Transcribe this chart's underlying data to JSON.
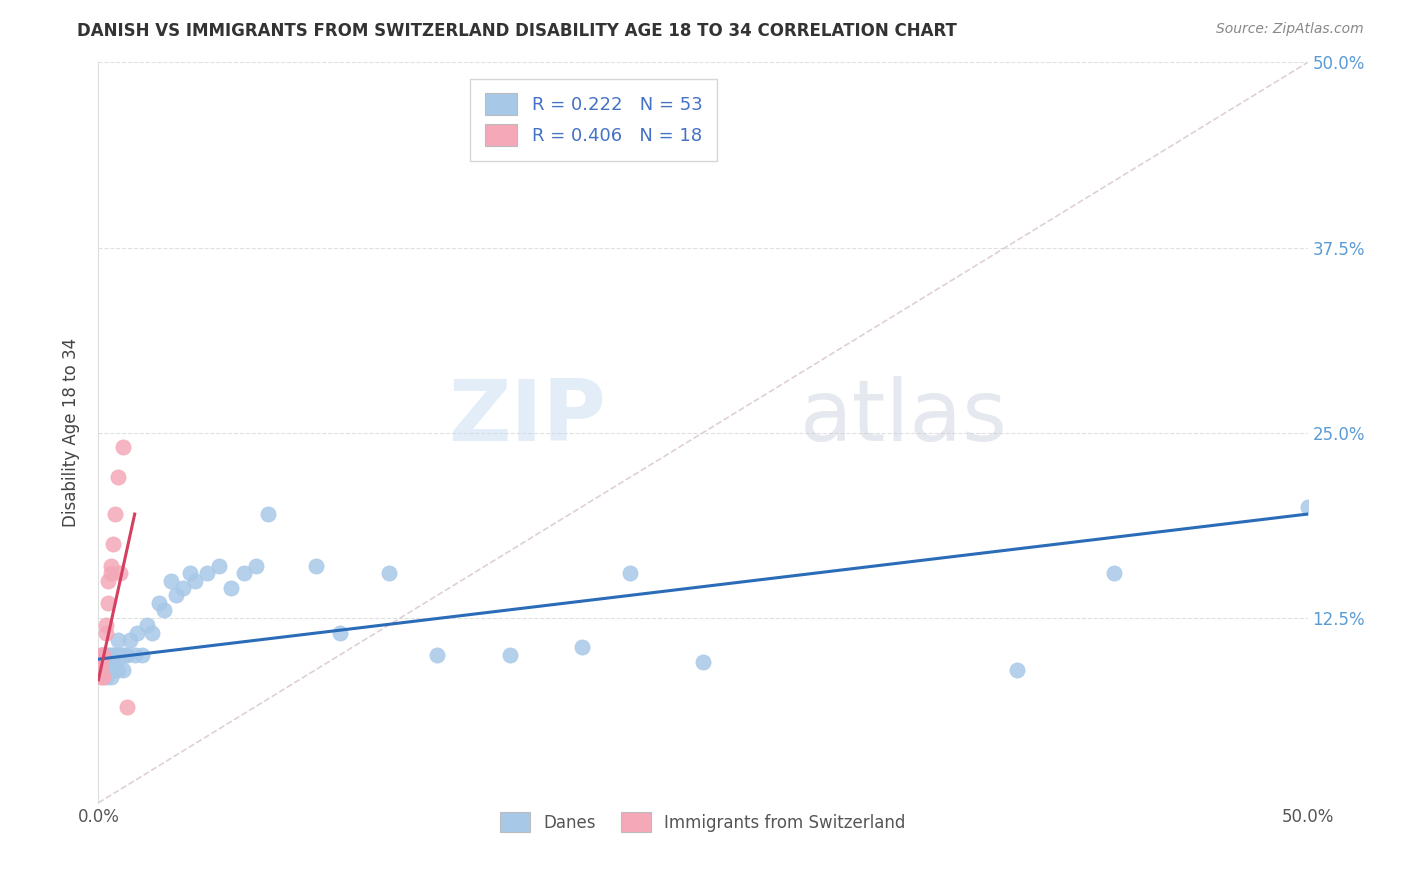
{
  "title": "DANISH VS IMMIGRANTS FROM SWITZERLAND DISABILITY AGE 18 TO 34 CORRELATION CHART",
  "source_text": "Source: ZipAtlas.com",
  "ylabel": "Disability Age 18 to 34",
  "xlim": [
    0.0,
    0.5
  ],
  "ylim": [
    0.0,
    0.5
  ],
  "xtick_vals": [
    0.0,
    0.125,
    0.25,
    0.375,
    0.5
  ],
  "xtick_labels": [
    "0.0%",
    "",
    "",
    "",
    "50.0%"
  ],
  "ytick_vals": [
    0.0,
    0.125,
    0.25,
    0.375,
    0.5
  ],
  "ytick_right_labels": [
    "",
    "12.5%",
    "25.0%",
    "37.5%",
    "50.0%"
  ],
  "watermark_zip": "ZIP",
  "watermark_atlas": "atlas",
  "danes_color": "#A8C8E8",
  "immigrants_color": "#F4A8B8",
  "danes_line_color": "#2B6CB8",
  "immigrants_line_color": "#D44060",
  "danes_R": 0.222,
  "danes_N": 53,
  "immigrants_R": 0.406,
  "immigrants_N": 18,
  "background_color": "#FFFFFF",
  "grid_color": "#DDDDDD",
  "diag_color": "#DDCCCC",
  "danes_scatter_x": [
    0.001,
    0.001,
    0.002,
    0.002,
    0.003,
    0.003,
    0.003,
    0.004,
    0.004,
    0.005,
    0.005,
    0.005,
    0.006,
    0.006,
    0.007,
    0.007,
    0.008,
    0.008,
    0.009,
    0.01,
    0.01,
    0.011,
    0.012,
    0.013,
    0.015,
    0.016,
    0.018,
    0.02,
    0.022,
    0.025,
    0.027,
    0.03,
    0.032,
    0.035,
    0.038,
    0.04,
    0.045,
    0.05,
    0.055,
    0.06,
    0.065,
    0.07,
    0.09,
    0.1,
    0.12,
    0.14,
    0.17,
    0.2,
    0.22,
    0.25,
    0.38,
    0.42,
    0.5
  ],
  "danes_scatter_y": [
    0.09,
    0.1,
    0.09,
    0.1,
    0.085,
    0.09,
    0.1,
    0.09,
    0.1,
    0.085,
    0.09,
    0.1,
    0.09,
    0.1,
    0.09,
    0.1,
    0.09,
    0.11,
    0.1,
    0.09,
    0.1,
    0.1,
    0.1,
    0.11,
    0.1,
    0.115,
    0.1,
    0.12,
    0.115,
    0.135,
    0.13,
    0.15,
    0.14,
    0.145,
    0.155,
    0.15,
    0.155,
    0.16,
    0.145,
    0.155,
    0.16,
    0.195,
    0.16,
    0.115,
    0.155,
    0.1,
    0.1,
    0.105,
    0.155,
    0.095,
    0.09,
    0.155,
    0.2
  ],
  "immigrants_scatter_x": [
    0.001,
    0.001,
    0.001,
    0.001,
    0.002,
    0.002,
    0.003,
    0.003,
    0.004,
    0.004,
    0.005,
    0.005,
    0.006,
    0.007,
    0.008,
    0.009,
    0.01,
    0.012
  ],
  "immigrants_scatter_y": [
    0.085,
    0.09,
    0.095,
    0.1,
    0.085,
    0.1,
    0.115,
    0.12,
    0.135,
    0.15,
    0.155,
    0.16,
    0.175,
    0.195,
    0.22,
    0.155,
    0.24,
    0.065
  ],
  "danes_trendline_x0": 0.0,
  "danes_trendline_y0": 0.097,
  "danes_trendline_x1": 0.5,
  "danes_trendline_y1": 0.195,
  "imm_trendline_x0": 0.0,
  "imm_trendline_y0": 0.083,
  "imm_trendline_x1": 0.015,
  "imm_trendline_y1": 0.195
}
